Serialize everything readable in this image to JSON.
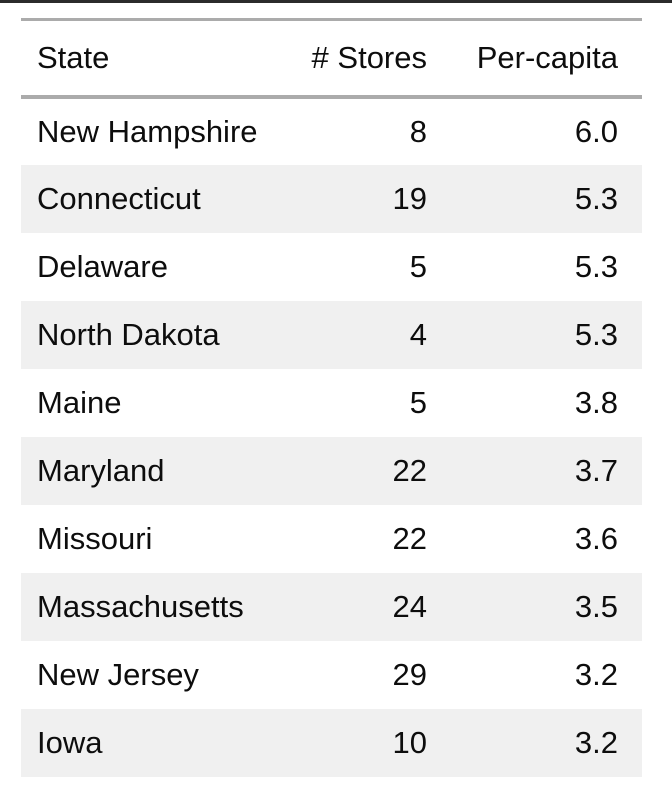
{
  "page": {
    "background": "#ffffff",
    "top_border_color": "#2b2b2b"
  },
  "table": {
    "columns": [
      {
        "key": "state",
        "label": "State",
        "align": "left"
      },
      {
        "key": "stores",
        "label": "# Stores",
        "align": "right"
      },
      {
        "key": "per_capita",
        "label": "Per-capita",
        "align": "right"
      }
    ],
    "rows": [
      {
        "state": "New Hampshire",
        "stores": "8",
        "per_capita": "6.0"
      },
      {
        "state": "Connecticut",
        "stores": "19",
        "per_capita": "5.3"
      },
      {
        "state": "Delaware",
        "stores": "5",
        "per_capita": "5.3"
      },
      {
        "state": "North Dakota",
        "stores": "4",
        "per_capita": "5.3"
      },
      {
        "state": "Maine",
        "stores": "5",
        "per_capita": "3.8"
      },
      {
        "state": "Maryland",
        "stores": "22",
        "per_capita": "3.7"
      },
      {
        "state": "Missouri",
        "stores": "22",
        "per_capita": "3.6"
      },
      {
        "state": "Massachusetts",
        "stores": "24",
        "per_capita": "3.5"
      },
      {
        "state": "New Jersey",
        "stores": "29",
        "per_capita": "3.2"
      },
      {
        "state": "Iowa",
        "stores": "10",
        "per_capita": "3.2"
      }
    ],
    "colors": {
      "zebra_stripe": "#f0f0f0",
      "rule": "#ababab",
      "text": "#0d0d0d"
    }
  },
  "chart_data": {
    "type": "table",
    "title": "",
    "columns": [
      "State",
      "# Stores",
      "Per-capita"
    ],
    "rows": [
      [
        "New Hampshire",
        8,
        6.0
      ],
      [
        "Connecticut",
        19,
        5.3
      ],
      [
        "Delaware",
        5,
        5.3
      ],
      [
        "North Dakota",
        4,
        5.3
      ],
      [
        "Maine",
        5,
        3.8
      ],
      [
        "Maryland",
        22,
        3.7
      ],
      [
        "Missouri",
        22,
        3.6
      ],
      [
        "Massachusetts",
        24,
        3.5
      ],
      [
        "New Jersey",
        29,
        3.2
      ],
      [
        "Iowa",
        10,
        3.2
      ]
    ],
    "layout_hints": {
      "zebra_striping": "even rows shaded",
      "numeric_columns_right_aligned": true,
      "sorted_by": "Per-capita descending"
    }
  }
}
